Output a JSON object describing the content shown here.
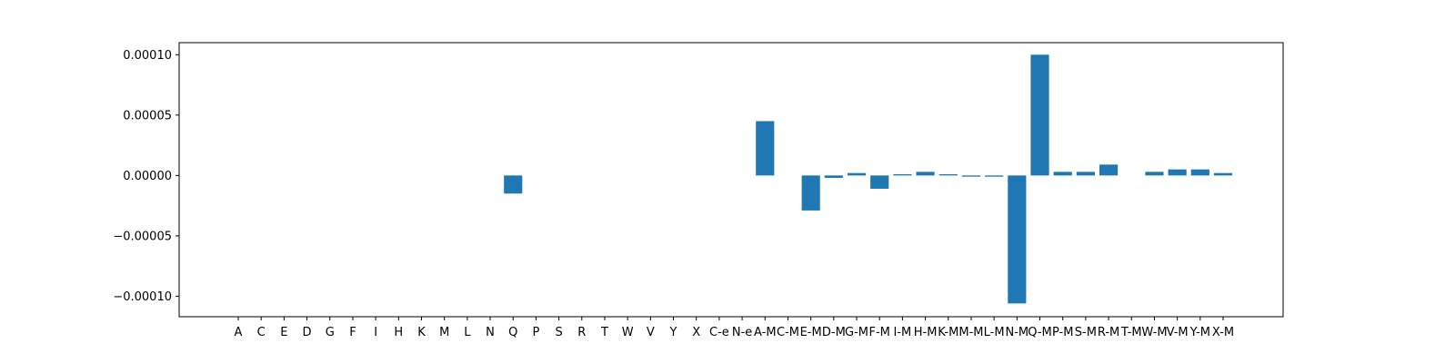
{
  "chart_data": {
    "type": "bar",
    "title": "",
    "xlabel": "",
    "ylabel": "",
    "categories": [
      "A",
      "C",
      "E",
      "D",
      "G",
      "F",
      "I",
      "H",
      "K",
      "M",
      "L",
      "N",
      "Q",
      "P",
      "S",
      "R",
      "T",
      "W",
      "V",
      "Y",
      "X",
      "C-e",
      "N-e",
      "A-M",
      "C-M",
      "E-M",
      "D-M",
      "G-M",
      "F-M",
      "I-M",
      "H-M",
      "K-M",
      "M-M",
      "L-M",
      "N-M",
      "Q-M",
      "P-M",
      "S-M",
      "R-M",
      "T-M",
      "W-M",
      "V-M",
      "Y-M",
      "X-M"
    ],
    "values": [
      0,
      0,
      0,
      0,
      0,
      0,
      0,
      0,
      0,
      0,
      0,
      0,
      -1.5e-05,
      0,
      0,
      0,
      0,
      0,
      0,
      0,
      0,
      0,
      0,
      4.5e-05,
      0,
      -2.9e-05,
      -2e-06,
      2e-06,
      -1.1e-05,
      1e-06,
      3e-06,
      1e-06,
      -1e-06,
      -1e-06,
      -0.000106,
      0.0001,
      3e-06,
      3e-06,
      9e-06,
      0,
      3e-06,
      5e-06,
      5e-06,
      2e-06
    ],
    "ylim": [
      -0.000117,
      0.00011
    ],
    "yticks": [
      -0.0001,
      -5e-05,
      0,
      5e-05,
      0.0001
    ],
    "ytick_labels": [
      "−0.00010",
      "−0.00005",
      "0.00000",
      "0.00005",
      "0.00010"
    ],
    "grid": false,
    "colors": {
      "bar": "#1f77b4",
      "axes": "#000000",
      "background": "#ffffff"
    }
  }
}
